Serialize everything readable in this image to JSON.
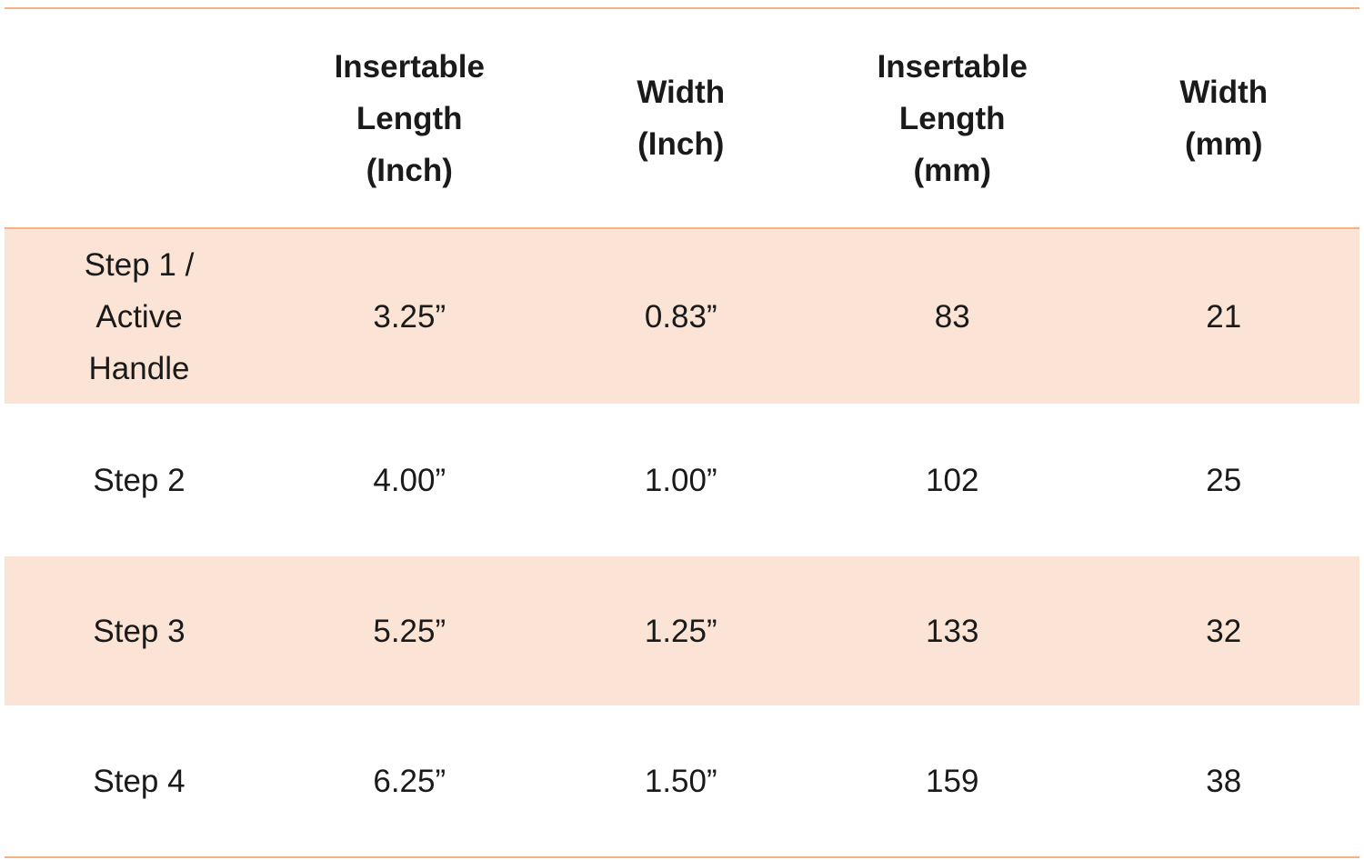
{
  "table": {
    "header": [
      "",
      "Insertable Length (Inch)",
      "Width (Inch)",
      "Insertable Length (mm)",
      "Width (mm)"
    ],
    "rows": [
      [
        "Step 1 / Active Handle",
        "3.25”",
        "0.83”",
        83,
        21
      ],
      [
        "Step 2",
        "4.00”",
        "1.00”",
        102,
        25
      ],
      [
        "Step 3",
        "5.25”",
        "1.25”",
        133,
        32
      ],
      [
        "Step 4",
        "6.25”",
        "1.50”",
        159,
        38
      ]
    ]
  }
}
